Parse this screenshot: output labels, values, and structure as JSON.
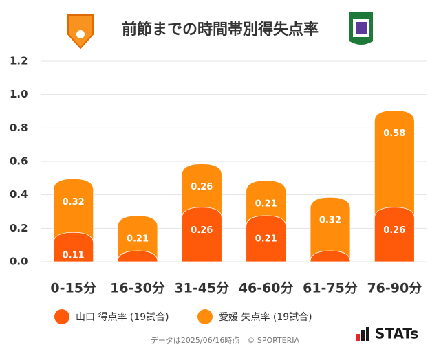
{
  "chart_data": {
    "type": "stacked_bar",
    "title": "前節までの時間帯別得失点率",
    "categories": [
      "0-15分",
      "16-30分",
      "31-45分",
      "46-60分",
      "61-75分",
      "76-90分"
    ],
    "series": [
      {
        "name": "山口 得点率 (19試合)",
        "color": "#ff5a0a",
        "values": [
          0.11,
          0,
          0.26,
          0.21,
          0,
          0.26
        ],
        "value_labels": [
          "0.11",
          null,
          "0.26",
          "0.21",
          null,
          "0.26"
        ]
      },
      {
        "name": "愛媛 失点率 (19試合)",
        "color": "#ff8c0a",
        "values": [
          0.32,
          0.21,
          0.26,
          0.21,
          0.32,
          0.58
        ]
      }
    ],
    "ylim": [
      0,
      1.2
    ],
    "yticks": [
      {
        "value": 0,
        "label": "0.0"
      },
      0.2,
      0.4,
      0.6,
      0.8,
      {
        "value": 1,
        "label": "1.0"
      },
      1.2
    ],
    "grid": true,
    "footer": "データは2025/06/16時点　© SPORTERIA",
    "brand": "STATs"
  }
}
